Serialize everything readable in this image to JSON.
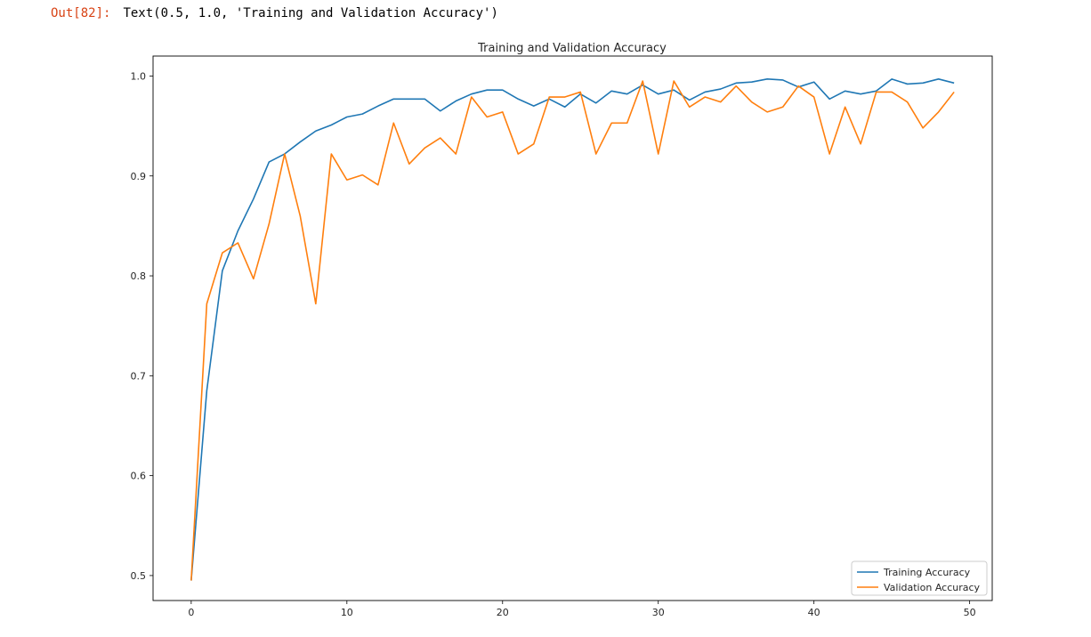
{
  "cell": {
    "prompt": "Out[82]:",
    "output": "Text(0.5, 1.0, 'Training and Validation Accuracy')"
  },
  "chart_data": {
    "type": "line",
    "title": "Training and Validation Accuracy",
    "xlabel": "",
    "ylabel": "",
    "xlim": [
      -2.45,
      51.45
    ],
    "ylim": [
      0.475,
      1.02
    ],
    "x_ticks": [
      0,
      10,
      20,
      30,
      40,
      50
    ],
    "y_ticks": [
      0.5,
      0.6,
      0.7,
      0.8,
      0.9,
      1.0
    ],
    "y_tick_labels": [
      "0.5",
      "0.6",
      "0.7",
      "0.8",
      "0.9",
      "1.0"
    ],
    "grid": false,
    "legend_position": "lower-right",
    "x": [
      0,
      1,
      2,
      3,
      4,
      5,
      6,
      7,
      8,
      9,
      10,
      11,
      12,
      13,
      14,
      15,
      16,
      17,
      18,
      19,
      20,
      21,
      22,
      23,
      24,
      25,
      26,
      27,
      28,
      29,
      30,
      31,
      32,
      33,
      34,
      35,
      36,
      37,
      38,
      39,
      40,
      41,
      42,
      43,
      44,
      45,
      46,
      47,
      48,
      49
    ],
    "series": [
      {
        "name": "Training Accuracy",
        "color": "#1f77b4",
        "values": [
          0.495,
          0.685,
          0.805,
          0.845,
          0.877,
          0.914,
          0.922,
          0.934,
          0.945,
          0.951,
          0.959,
          0.962,
          0.97,
          0.977,
          0.977,
          0.977,
          0.965,
          0.975,
          0.982,
          0.986,
          0.986,
          0.977,
          0.97,
          0.977,
          0.969,
          0.982,
          0.973,
          0.985,
          0.982,
          0.991,
          0.982,
          0.986,
          0.976,
          0.984,
          0.987,
          0.993,
          0.994,
          0.997,
          0.996,
          0.989,
          0.994,
          0.977,
          0.985,
          0.982,
          0.985,
          0.997,
          0.992,
          0.993,
          0.997,
          0.993
        ]
      },
      {
        "name": "Validation Accuracy",
        "color": "#ff7f0e",
        "values": [
          0.495,
          0.772,
          0.823,
          0.833,
          0.797,
          0.852,
          0.922,
          0.86,
          0.772,
          0.922,
          0.896,
          0.901,
          0.891,
          0.953,
          0.912,
          0.928,
          0.938,
          0.922,
          0.979,
          0.959,
          0.964,
          0.922,
          0.932,
          0.979,
          0.979,
          0.984,
          0.922,
          0.953,
          0.953,
          0.995,
          0.922,
          0.995,
          0.969,
          0.979,
          0.974,
          0.99,
          0.974,
          0.964,
          0.969,
          0.99,
          0.979,
          0.922,
          0.969,
          0.932,
          0.984,
          0.984,
          0.974,
          0.948,
          0.964,
          0.984
        ]
      }
    ]
  }
}
